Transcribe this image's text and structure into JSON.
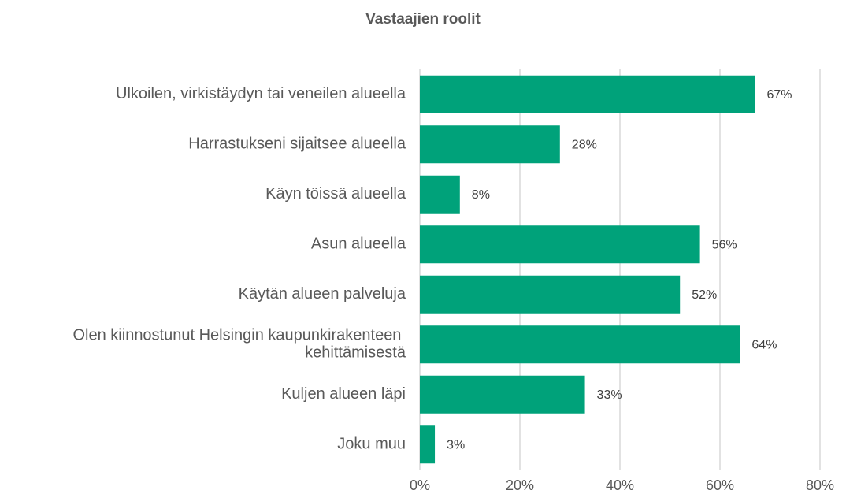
{
  "chart_data": {
    "type": "bar",
    "orientation": "horizontal",
    "title": "Vastaajien roolit",
    "categories": [
      "Ulkoilen, virkistäydyn tai veneilen alueella",
      "Harrastukseni sijaitsee alueella",
      "Käyn töissä alueella",
      "Asun alueella",
      "Käytän alueen palveluja",
      "Olen kiinnostunut Helsingin kaupunkirakenteen kehittämisestä",
      "Kuljen alueen läpi",
      "Joku muu"
    ],
    "values": [
      67,
      28,
      8,
      56,
      52,
      64,
      33,
      3
    ],
    "value_labels": [
      "67%",
      "28%",
      "8%",
      "56%",
      "52%",
      "64%",
      "33%",
      "3%"
    ],
    "color": "#00a27a",
    "xlim": [
      0,
      80
    ],
    "xticks": [
      {
        "value": 0,
        "label": "0%"
      },
      {
        "value": 20,
        "label": "20%"
      },
      {
        "value": 40,
        "label": "40%"
      },
      {
        "value": 60,
        "label": "60%"
      },
      {
        "value": 80,
        "label": "80%"
      }
    ],
    "grid": true
  }
}
